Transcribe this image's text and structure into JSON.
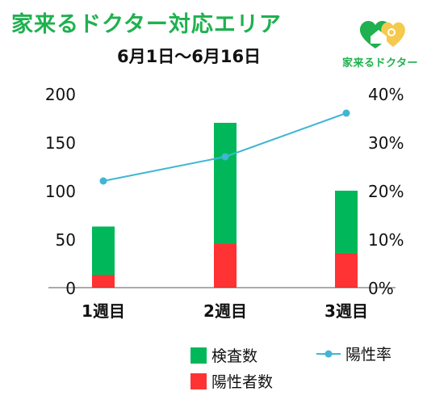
{
  "header": {
    "title": "家来るドクター対応エリア",
    "subtitle": "6月1日〜6月16日",
    "logo_text": "家来るドクター"
  },
  "colors": {
    "title_green": "#1fb14f",
    "bar_green": "#00b85a",
    "bar_red": "#ff3333",
    "line": "#3fb6d3"
  },
  "chart_data": {
    "type": "bar",
    "categories": [
      "1週目",
      "2週目",
      "3週目"
    ],
    "series": [
      {
        "name": "検査数",
        "type": "bar",
        "axis": "left",
        "values": [
          63,
          170,
          100
        ]
      },
      {
        "name": "陽性者数",
        "type": "bar",
        "axis": "left",
        "values": [
          13,
          45,
          35
        ]
      },
      {
        "name": "陽性率",
        "type": "line",
        "axis": "right",
        "values": [
          0.22,
          0.27,
          0.36
        ]
      }
    ],
    "y_left": {
      "ylim": [
        0,
        200
      ],
      "ticks": [
        0,
        50,
        100,
        150,
        200
      ]
    },
    "y_right": {
      "ylim": [
        0,
        0.4
      ],
      "ticks": [
        "0%",
        "10%",
        "20%",
        "30%",
        "40%"
      ]
    },
    "legend": [
      "検査数",
      "陽性率",
      "陽性者数"
    ],
    "legend_position": "bottom"
  }
}
